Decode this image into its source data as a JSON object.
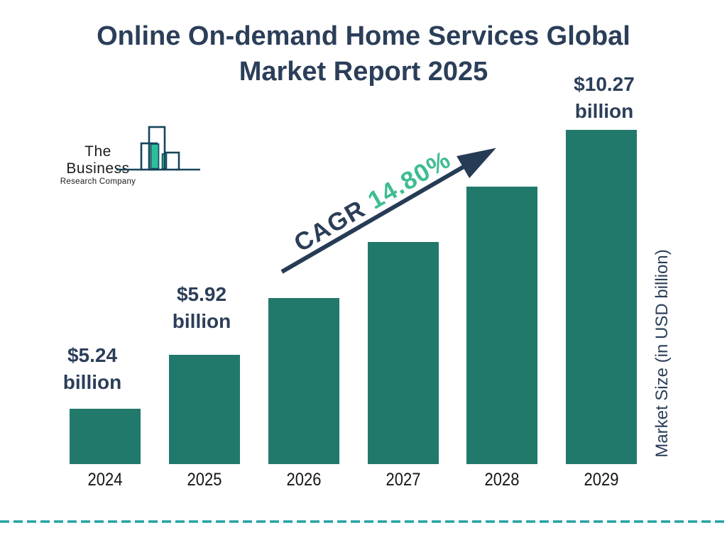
{
  "title": {
    "line1": "Online On-demand Home Services Global",
    "line2": "Market Report 2025"
  },
  "logo": {
    "line1": "The Business",
    "line2": "Research Company"
  },
  "cagr": {
    "label": "CAGR",
    "value": "14.80%"
  },
  "y_axis_label": "Market Size (in USD billion)",
  "colors": {
    "bar_fill": "#21796b",
    "navy_text": "#2b3e59",
    "cagr_green": "#3ebd90",
    "arrow": "#263c55",
    "dashed_line": "#26a2a2",
    "logo_outline": "#16455a",
    "logo_bar_fill": "#2cbf9d"
  },
  "chart_data": {
    "type": "bar",
    "title": "Online On-demand Home Services Global Market Report 2025",
    "categories": [
      "2024",
      "2025",
      "2026",
      "2027",
      "2028",
      "2029"
    ],
    "values": [
      5.24,
      5.92,
      6.8,
      7.8,
      8.95,
      10.27
    ],
    "unit": "USD billion",
    "ylabel": "Market Size (in USD billion)",
    "cagr_percent": 14.8,
    "grid": false,
    "legend": "none",
    "data_labels": [
      {
        "category": "2024",
        "line1": "$5.24",
        "line2": "billion"
      },
      {
        "category": "2025",
        "line1": "$5.92",
        "line2": "billion"
      },
      {
        "category": "2029",
        "line1": "$10.27",
        "line2": "billion"
      }
    ]
  }
}
